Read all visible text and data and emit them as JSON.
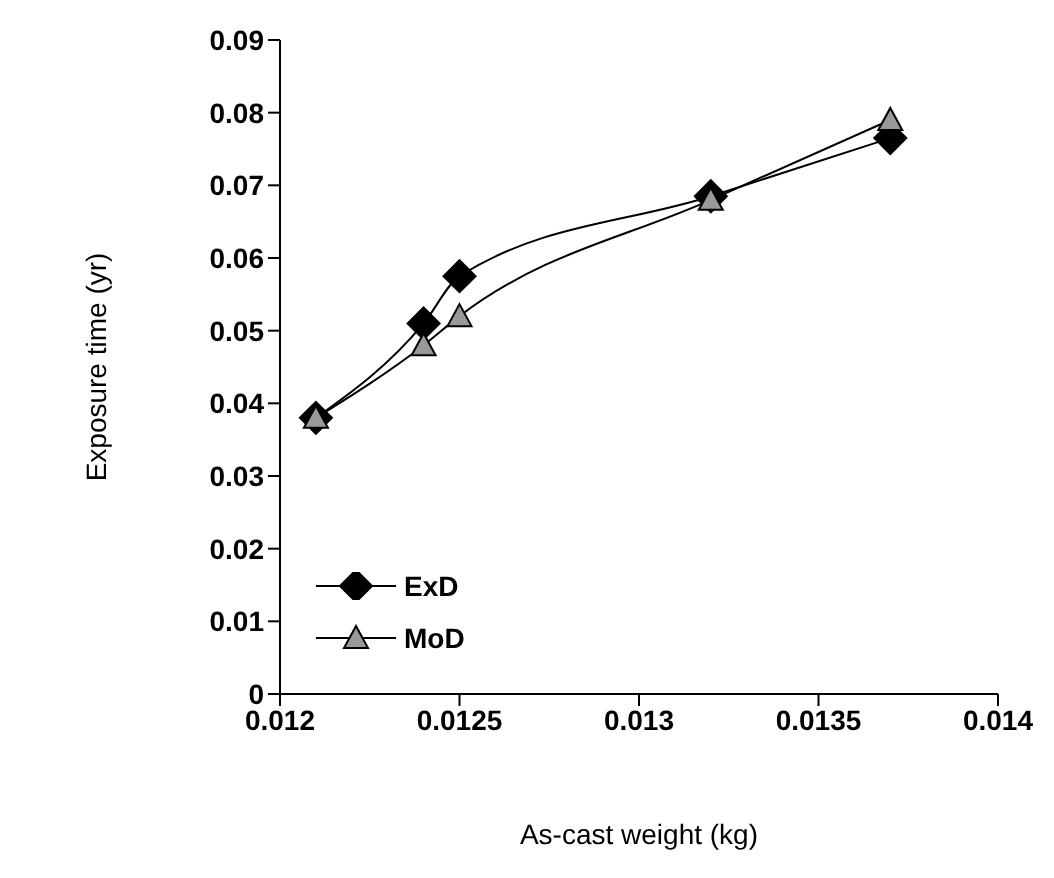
{
  "chart_data": {
    "type": "line",
    "xlabel": "As-cast weight (kg)",
    "ylabel": "Exposure time (yr)",
    "x": [
      0.0121,
      0.0124,
      0.0125,
      0.0132,
      0.0137
    ],
    "series": [
      {
        "name": "ExD",
        "color": "#000000",
        "marker": "diamond",
        "values": [
          0.038,
          0.051,
          0.0575,
          0.0685,
          0.0765
        ]
      },
      {
        "name": "MoD",
        "color": "#999999",
        "marker": "triangle",
        "values": [
          0.038,
          0.048,
          0.052,
          0.068,
          0.079
        ]
      }
    ],
    "xlim": [
      0.012,
      0.014
    ],
    "xticks": [
      0.012,
      0.0125,
      0.013,
      0.0135,
      0.014
    ],
    "ylim": [
      0,
      0.09
    ],
    "yticks": [
      0,
      0.01,
      0.02,
      0.03,
      0.04,
      0.05,
      0.06,
      0.07,
      0.08,
      0.09
    ],
    "grid": false,
    "legend": "bottom left",
    "line_style": "solid"
  }
}
